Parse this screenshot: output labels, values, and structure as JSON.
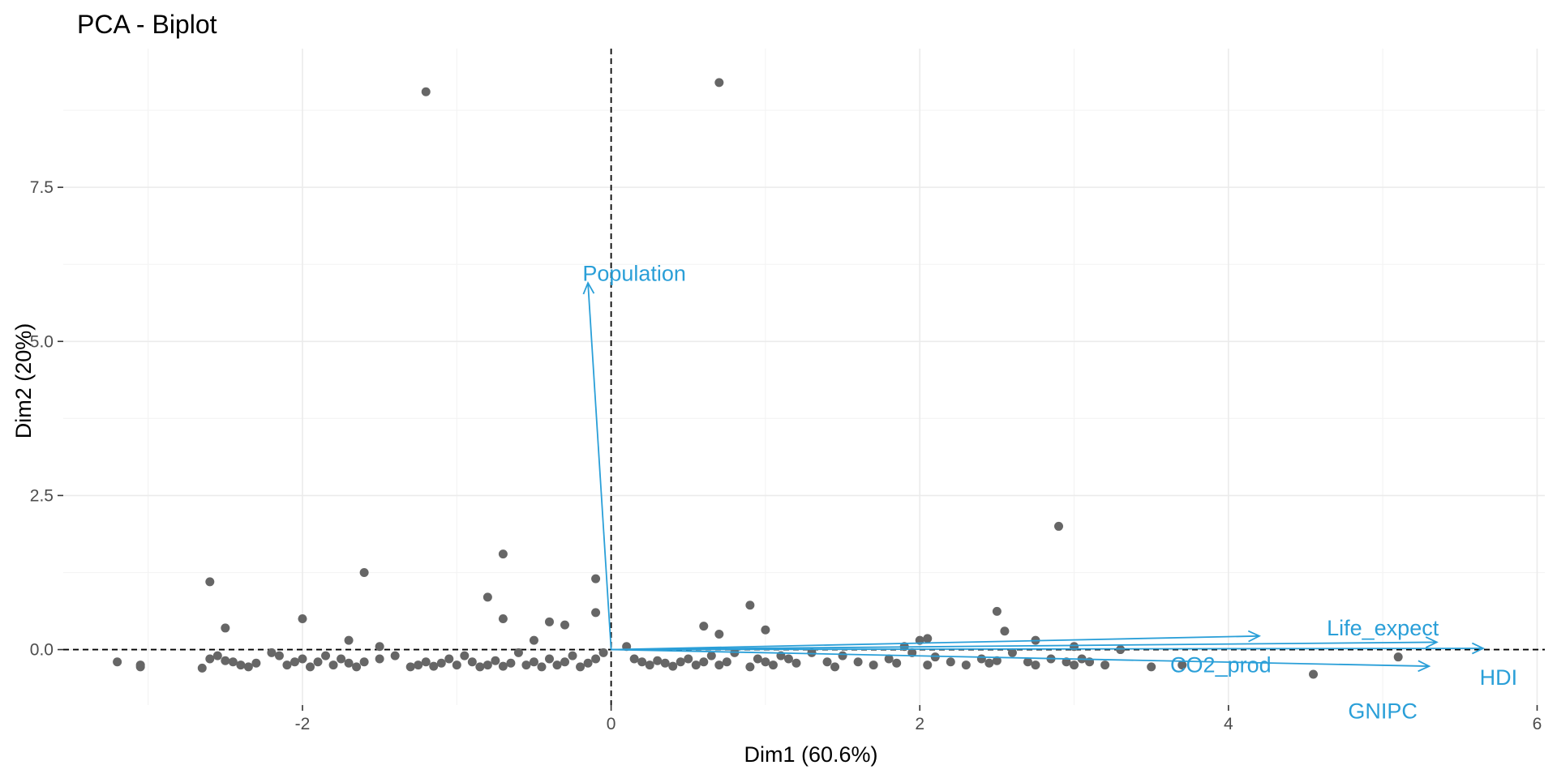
{
  "chart_data": {
    "type": "scatter",
    "title": "PCA - Biplot",
    "xlabel": "Dim1 (60.6%)",
    "ylabel": "Dim2 (20%)",
    "xlim": [
      -3.55,
      6.05
    ],
    "ylim": [
      -0.9,
      9.75
    ],
    "x_ticks": [
      -2,
      0,
      2,
      4,
      6
    ],
    "x_tick_labels": [
      "-2",
      "0",
      "2",
      "4",
      "6"
    ],
    "y_ticks": [
      0,
      2.5,
      5,
      7.5
    ],
    "y_tick_labels": [
      "0.0",
      "2.5",
      "5.0",
      "7.5"
    ],
    "grid": true,
    "point_color": "#666666",
    "arrow_color": "#2a9fd8",
    "points": [
      [
        -1.2,
        9.05
      ],
      [
        0.7,
        9.2
      ],
      [
        -2.6,
        1.1
      ],
      [
        -2.5,
        0.35
      ],
      [
        -1.6,
        1.25
      ],
      [
        -2.0,
        0.5
      ],
      [
        -1.7,
        0.15
      ],
      [
        -1.5,
        0.05
      ],
      [
        -0.8,
        0.85
      ],
      [
        -0.7,
        1.55
      ],
      [
        -0.7,
        0.5
      ],
      [
        -0.4,
        0.45
      ],
      [
        -0.3,
        0.4
      ],
      [
        -0.5,
        0.15
      ],
      [
        -0.1,
        0.6
      ],
      [
        -0.1,
        1.15
      ],
      [
        0.6,
        0.38
      ],
      [
        0.7,
        0.25
      ],
      [
        0.9,
        0.72
      ],
      [
        1.0,
        0.32
      ],
      [
        2.0,
        0.15
      ],
      [
        2.05,
        0.18
      ],
      [
        2.5,
        0.62
      ],
      [
        2.55,
        0.3
      ],
      [
        2.9,
        2.0
      ],
      [
        2.75,
        0.15
      ],
      [
        1.9,
        0.05
      ],
      [
        3.0,
        0.05
      ],
      [
        3.3,
        0.0
      ],
      [
        -3.2,
        -0.2
      ],
      [
        -3.05,
        -0.25
      ],
      [
        -3.05,
        -0.28
      ],
      [
        -2.65,
        -0.3
      ],
      [
        -2.6,
        -0.15
      ],
      [
        -2.55,
        -0.1
      ],
      [
        -2.5,
        -0.18
      ],
      [
        -2.45,
        -0.2
      ],
      [
        -2.4,
        -0.25
      ],
      [
        -2.35,
        -0.28
      ],
      [
        -2.3,
        -0.22
      ],
      [
        -2.2,
        -0.05
      ],
      [
        -2.15,
        -0.1
      ],
      [
        -2.1,
        -0.25
      ],
      [
        -2.05,
        -0.2
      ],
      [
        -2.0,
        -0.15
      ],
      [
        -1.95,
        -0.28
      ],
      [
        -1.9,
        -0.2
      ],
      [
        -1.85,
        -0.1
      ],
      [
        -1.8,
        -0.25
      ],
      [
        -1.75,
        -0.15
      ],
      [
        -1.7,
        -0.22
      ],
      [
        -1.65,
        -0.28
      ],
      [
        -1.6,
        -0.2
      ],
      [
        -1.5,
        -0.15
      ],
      [
        -1.4,
        -0.1
      ],
      [
        -1.3,
        -0.28
      ],
      [
        -1.25,
        -0.25
      ],
      [
        -1.2,
        -0.2
      ],
      [
        -1.15,
        -0.27
      ],
      [
        -1.1,
        -0.22
      ],
      [
        -1.05,
        -0.15
      ],
      [
        -1.0,
        -0.25
      ],
      [
        -0.95,
        -0.1
      ],
      [
        -0.9,
        -0.2
      ],
      [
        -0.85,
        -0.28
      ],
      [
        -0.8,
        -0.25
      ],
      [
        -0.75,
        -0.18
      ],
      [
        -0.7,
        -0.27
      ],
      [
        -0.65,
        -0.22
      ],
      [
        -0.6,
        -0.05
      ],
      [
        -0.55,
        -0.25
      ],
      [
        -0.5,
        -0.2
      ],
      [
        -0.45,
        -0.28
      ],
      [
        -0.4,
        -0.15
      ],
      [
        -0.35,
        -0.25
      ],
      [
        -0.3,
        -0.2
      ],
      [
        -0.25,
        -0.1
      ],
      [
        -0.2,
        -0.28
      ],
      [
        -0.15,
        -0.22
      ],
      [
        -0.1,
        -0.15
      ],
      [
        -0.05,
        -0.05
      ],
      [
        0.1,
        0.05
      ],
      [
        0.15,
        -0.15
      ],
      [
        0.2,
        -0.2
      ],
      [
        0.25,
        -0.25
      ],
      [
        0.3,
        -0.18
      ],
      [
        0.35,
        -0.22
      ],
      [
        0.4,
        -0.27
      ],
      [
        0.45,
        -0.2
      ],
      [
        0.5,
        -0.15
      ],
      [
        0.55,
        -0.25
      ],
      [
        0.6,
        -0.2
      ],
      [
        0.65,
        -0.1
      ],
      [
        0.7,
        -0.25
      ],
      [
        0.75,
        -0.2
      ],
      [
        0.8,
        -0.05
      ],
      [
        0.9,
        -0.28
      ],
      [
        0.95,
        -0.15
      ],
      [
        1.0,
        -0.2
      ],
      [
        1.05,
        -0.25
      ],
      [
        1.1,
        -0.1
      ],
      [
        1.15,
        -0.15
      ],
      [
        1.2,
        -0.22
      ],
      [
        1.3,
        -0.05
      ],
      [
        1.4,
        -0.2
      ],
      [
        1.45,
        -0.28
      ],
      [
        1.5,
        -0.1
      ],
      [
        1.6,
        -0.2
      ],
      [
        1.7,
        -0.25
      ],
      [
        1.8,
        -0.15
      ],
      [
        1.85,
        -0.22
      ],
      [
        1.95,
        -0.05
      ],
      [
        2.05,
        -0.25
      ],
      [
        2.1,
        -0.12
      ],
      [
        2.2,
        -0.2
      ],
      [
        2.3,
        -0.25
      ],
      [
        2.4,
        -0.15
      ],
      [
        2.45,
        -0.22
      ],
      [
        2.5,
        -0.18
      ],
      [
        2.6,
        -0.05
      ],
      [
        2.7,
        -0.2
      ],
      [
        2.75,
        -0.25
      ],
      [
        2.85,
        -0.15
      ],
      [
        2.95,
        -0.2
      ],
      [
        3.0,
        -0.25
      ],
      [
        3.05,
        -0.15
      ],
      [
        3.1,
        -0.2
      ],
      [
        3.2,
        -0.25
      ],
      [
        3.5,
        -0.28
      ],
      [
        3.7,
        -0.25
      ],
      [
        4.55,
        -0.4
      ],
      [
        5.1,
        -0.12
      ]
    ],
    "variables": [
      {
        "name": "Population",
        "x": -0.15,
        "y": 5.95,
        "label_x": 0.15,
        "label_y": 6.1
      },
      {
        "name": "Life_expect",
        "x": 5.35,
        "y": 0.12,
        "label_x": 5.0,
        "label_y": 0.35
      },
      {
        "name": "CO2_prod",
        "x": 4.2,
        "y": 0.22,
        "label_x": 3.95,
        "label_y": -0.25
      },
      {
        "name": "GNIPC",
        "x": 5.3,
        "y": -0.27,
        "label_x": 5.0,
        "label_y": -1.0
      },
      {
        "name": "HDI",
        "x": 5.65,
        "y": 0.02,
        "label_x": 5.75,
        "label_y": -0.45
      }
    ]
  }
}
